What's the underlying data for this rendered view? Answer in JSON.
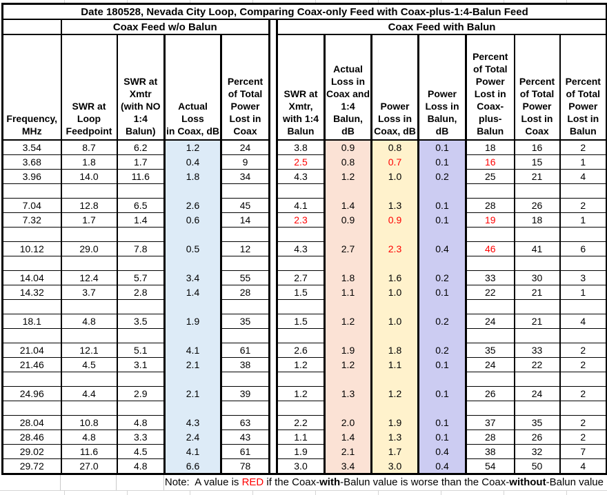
{
  "title": "Date 180528, Nevada City Loop, Comparing Coax-only Feed with Coax-plus-1:4-Balun Feed",
  "groups": {
    "left": "Coax Feed w/o Balun",
    "right": "Coax Feed with Balun"
  },
  "columns": [
    {
      "key": "frequency",
      "header": "Frequency,\nMHz",
      "width": 85
    },
    {
      "key": "swr-loop-feedpoint",
      "header": "SWR at\nLoop\nFeedpoint",
      "width": 81
    },
    {
      "key": "swr-xmtr-no-balun",
      "header": "SWR at\nXmtr\n(with NO\n1:4\nBalun)",
      "width": 69
    },
    {
      "key": "actual-loss-coax",
      "header": "Actual Loss\nin Coax, dB",
      "width": 82,
      "bg": "blue"
    },
    {
      "key": "pct-power-lost-coax",
      "header": "Percent\nof Total\nPower\nLost in\nCoax",
      "width": 70
    },
    {
      "key": "separator",
      "header": "",
      "width": 11,
      "sep": true
    },
    {
      "key": "swr-xmtr-balun",
      "header": "SWR at\nXmtr,\nwith 1:4\nBalun",
      "width": 69
    },
    {
      "key": "actual-loss-coax-balun",
      "header": "Actual\nLoss in\nCoax and\n1:4\nBalun,\ndB",
      "width": 68,
      "bg": "pink"
    },
    {
      "key": "power-loss-coax",
      "header": "Power\nLoss in\nCoax, dB",
      "width": 68,
      "bg": "yellow"
    },
    {
      "key": "power-loss-balun",
      "header": "Power\nLoss in\nBalun,\ndB",
      "width": 69,
      "bg": "purple"
    },
    {
      "key": "pct-lost-coax-plus-balun",
      "header": "Percent\nof Total\nPower\nLost in\nCoax-\nplus-\nBalun",
      "width": 70
    },
    {
      "key": "pct-lost-coax",
      "header": "Percent\nof Total\nPower\nLost in\nCoax",
      "width": 66
    },
    {
      "key": "pct-lost-balun",
      "header": "Percent\nof Total\nPower\nLost in\nBalun",
      "width": 68
    }
  ],
  "rows": [
    {
      "freq": "3.54",
      "values": [
        "8.7",
        "6.2",
        "1.2",
        "24",
        "3.8",
        "0.9",
        "0.8",
        "0.1",
        "18",
        "16",
        "2"
      ],
      "red": []
    },
    {
      "freq": "3.68",
      "values": [
        "1.8",
        "1.7",
        "0.4",
        "9",
        "2.5",
        "0.8",
        "0.7",
        "0.1",
        "16",
        "15",
        "1"
      ],
      "red": [
        4,
        6,
        8
      ]
    },
    {
      "freq": "3.96",
      "values": [
        "14.0",
        "11.6",
        "1.8",
        "34",
        "4.3",
        "1.2",
        "1.0",
        "0.2",
        "25",
        "21",
        "4"
      ],
      "red": []
    },
    {
      "blank": true
    },
    {
      "freq": "7.04",
      "values": [
        "12.8",
        "6.5",
        "2.6",
        "45",
        "4.1",
        "1.4",
        "1.3",
        "0.1",
        "28",
        "26",
        "2"
      ],
      "red": []
    },
    {
      "freq": "7.32",
      "values": [
        "1.7",
        "1.4",
        "0.6",
        "14",
        "2.3",
        "0.9",
        "0.9",
        "0.1",
        "19",
        "18",
        "1"
      ],
      "red": [
        4,
        6,
        8
      ]
    },
    {
      "blank": true
    },
    {
      "freq": "10.12",
      "values": [
        "29.0",
        "7.8",
        "0.5",
        "12",
        "4.3",
        "2.7",
        "2.3",
        "0.4",
        "46",
        "41",
        "6"
      ],
      "red": [
        6,
        8
      ]
    },
    {
      "blank": true
    },
    {
      "freq": "14.04",
      "values": [
        "12.4",
        "5.7",
        "3.4",
        "55",
        "2.7",
        "1.8",
        "1.6",
        "0.2",
        "33",
        "30",
        "3"
      ],
      "red": []
    },
    {
      "freq": "14.32",
      "values": [
        "3.7",
        "2.8",
        "1.4",
        "28",
        "1.5",
        "1.1",
        "1.0",
        "0.1",
        "22",
        "21",
        "1"
      ],
      "red": []
    },
    {
      "blank": true
    },
    {
      "freq": "18.1",
      "values": [
        "4.8",
        "3.5",
        "1.9",
        "35",
        "1.5",
        "1.2",
        "1.0",
        "0.2",
        "24",
        "21",
        "4"
      ],
      "red": []
    },
    {
      "blank": true
    },
    {
      "freq": "21.04",
      "values": [
        "12.1",
        "5.1",
        "4.1",
        "61",
        "2.6",
        "1.9",
        "1.8",
        "0.2",
        "35",
        "33",
        "2"
      ],
      "red": []
    },
    {
      "freq": "21.46",
      "values": [
        "4.5",
        "3.1",
        "2.1",
        "38",
        "1.2",
        "1.2",
        "1.1",
        "0.1",
        "24",
        "22",
        "2"
      ],
      "red": []
    },
    {
      "blank": true
    },
    {
      "freq": "24.96",
      "values": [
        "4.4",
        "2.9",
        "2.1",
        "39",
        "1.2",
        "1.3",
        "1.2",
        "0.1",
        "26",
        "24",
        "2"
      ],
      "red": []
    },
    {
      "blank": true
    },
    {
      "freq": "28.04",
      "values": [
        "10.8",
        "4.8",
        "4.3",
        "63",
        "2.2",
        "2.0",
        "1.9",
        "0.1",
        "37",
        "35",
        "2"
      ],
      "red": []
    },
    {
      "freq": "28.46",
      "values": [
        "4.8",
        "3.3",
        "2.4",
        "43",
        "1.1",
        "1.4",
        "1.3",
        "0.1",
        "28",
        "26",
        "2"
      ],
      "red": []
    },
    {
      "freq": "29.02",
      "values": [
        "11.6",
        "4.5",
        "4.1",
        "61",
        "1.9",
        "2.1",
        "1.7",
        "0.4",
        "38",
        "32",
        "7"
      ],
      "red": []
    },
    {
      "freq": "29.72",
      "values": [
        "27.0",
        "4.8",
        "6.6",
        "78",
        "3.0",
        "3.4",
        "3.0",
        "0.4",
        "54",
        "50",
        "4"
      ],
      "red": []
    }
  ],
  "note": {
    "parts": [
      {
        "t": "Note:  A value is "
      },
      {
        "t": "RED",
        "red": true
      },
      {
        "t": " if the Coax-"
      },
      {
        "t": "with",
        "b": true
      },
      {
        "t": "-Balun value is worse than the Coax-"
      },
      {
        "t": "without",
        "b": true
      },
      {
        "t": "-Balun value"
      }
    ]
  },
  "colors": {
    "loss_coax_column": "#DDEBF7",
    "loss_coax_balun_column": "#FBE2D5",
    "power_loss_coax_column": "#FFF2CC",
    "power_loss_balun_column": "#CCCCF2",
    "flag_red": "#FF0000",
    "border": "#000000",
    "sheet_gridline": "#D4D4D4"
  }
}
